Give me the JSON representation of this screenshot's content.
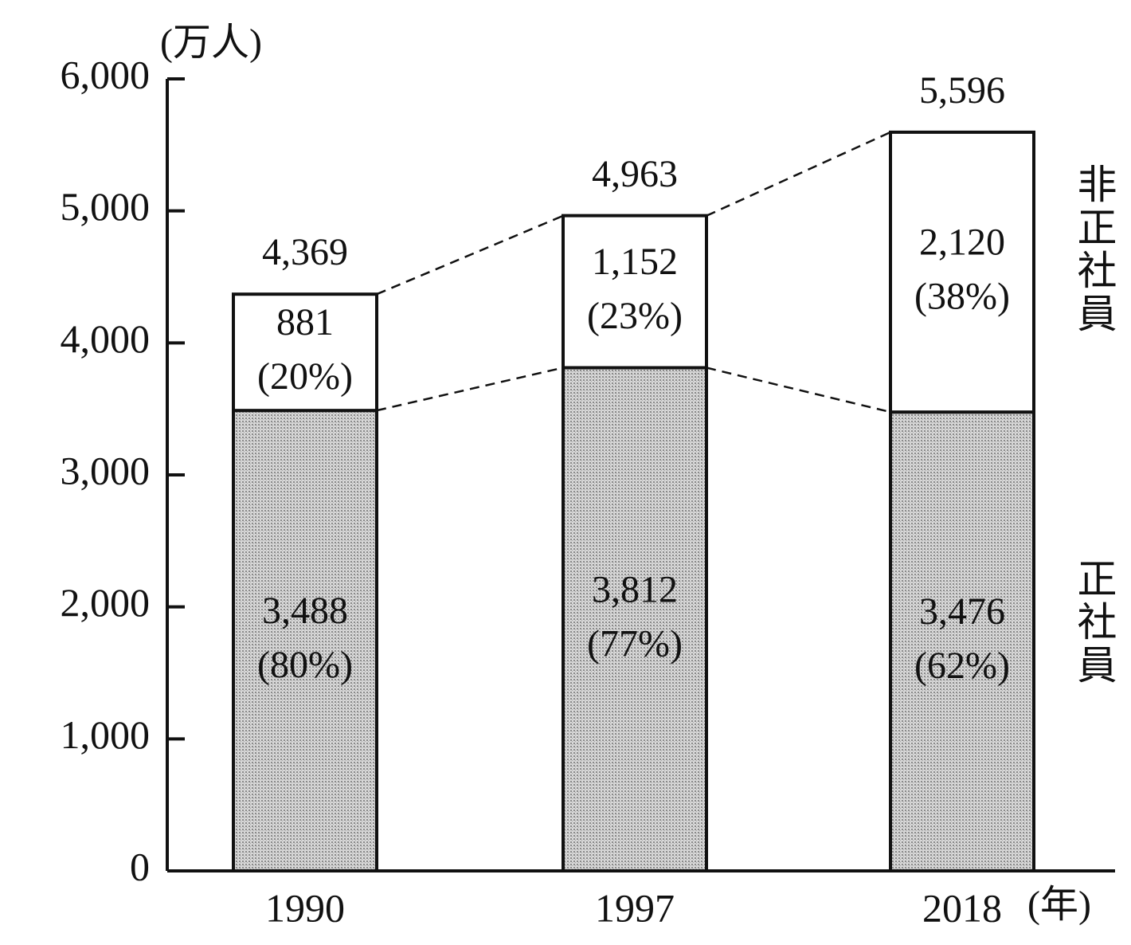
{
  "chart_data": {
    "type": "stacked_bar",
    "y_unit": "(万人)",
    "x_unit": "(年)",
    "categories": [
      "1990",
      "1997",
      "2018"
    ],
    "series": [
      {
        "name": "正社員",
        "color": "#c4c4c4",
        "values": [
          3488,
          3812,
          3476
        ],
        "value_labels": [
          "3,488",
          "3,812",
          "3,476"
        ],
        "share_labels": [
          "(80%)",
          "(77%)",
          "(62%)"
        ]
      },
      {
        "name": "非正社員",
        "color": "#ffffff",
        "values": [
          881,
          1152,
          2120
        ],
        "value_labels": [
          "881",
          "1,152",
          "2,120"
        ],
        "share_labels": [
          "(20%)",
          "(23%)",
          "(38%)"
        ]
      }
    ],
    "totals": [
      4369,
      4963,
      5596
    ],
    "total_labels": [
      "4,369",
      "4,963",
      "5,596"
    ],
    "ylim": [
      0,
      6000
    ],
    "yticks": [
      0,
      {
        "value": 1000,
        "label": "1,000"
      },
      {
        "value": 2000,
        "label": "2,000"
      },
      {
        "value": 3000,
        "label": "3,000"
      },
      {
        "value": 4000,
        "label": "4,000"
      },
      {
        "value": 5000,
        "label": "5,000"
      },
      {
        "value": 6000,
        "label": "6,000"
      }
    ]
  }
}
